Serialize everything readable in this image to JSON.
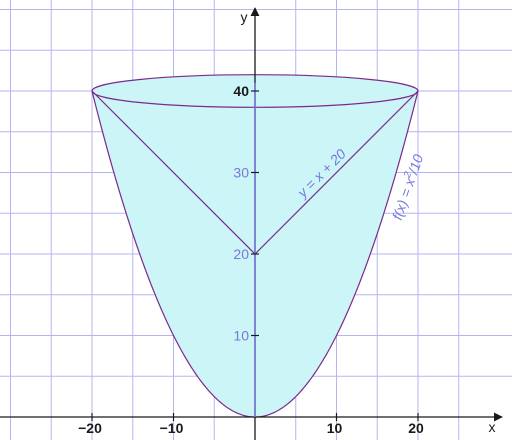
{
  "chart_data": {
    "type": "area",
    "xlabel": "x",
    "ylabel": "y",
    "xlim": [
      -31,
      29.5
    ],
    "ylim": [
      0,
      50
    ],
    "grid": true,
    "x_ticks": [
      -20,
      -10,
      10,
      20
    ],
    "x_tick_labels": [
      "−20",
      "−10",
      "10",
      "20"
    ],
    "y_ticks": [
      10,
      20,
      30,
      40
    ],
    "y_tick_labels": [
      "10",
      "20",
      "30",
      "40"
    ],
    "colors": {
      "fill": "#ccf5f7",
      "curve": "#7a2a8a",
      "grid": "#b5b5ef",
      "axis": "#1a1a1a",
      "y_axis_inside": "#7777dd",
      "label": "#7777dd"
    },
    "series": [
      {
        "formula": "x^2/10",
        "x_range": [
          -20,
          20
        ]
      },
      {
        "formula": "|x| + 20",
        "x_range": [
          -20,
          20
        ]
      }
    ],
    "rim_ellipse": {
      "center_y": 40,
      "radius_x": 20,
      "radius_y": 2
    },
    "annotations": [
      {
        "text_main": "y = x + 20",
        "x": 8.6,
        "y": 29.5,
        "angle_deg": -45
      },
      {
        "text_main": "f(x) = x",
        "text_sup": "2",
        "text_tail": "/10",
        "x": 19.3,
        "y": 28,
        "angle_deg": -71
      }
    ]
  }
}
